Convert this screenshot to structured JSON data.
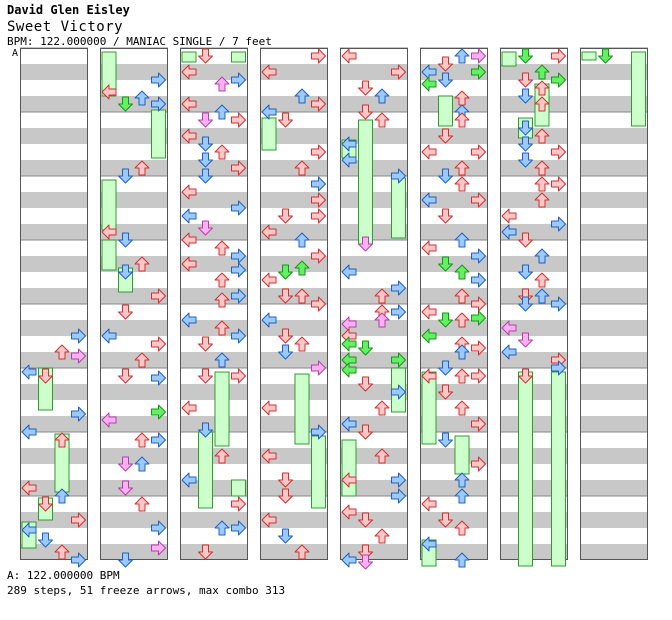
{
  "header": {
    "artist": "David Glen Eisley",
    "title": "Sweet Victory",
    "meta": "BPM: 122.000000 / MANIAC SINGLE / 7 feet",
    "bpm_marker": "A"
  },
  "footer": {
    "bpm_line": "A: 122.000000 BPM",
    "stats_line": "289 steps, 51 freeze arrows, max combo 313"
  },
  "colors": {
    "stripe": "#c8c8c8",
    "panel_border": "#555555",
    "arrow_red_fill": "#ffc8c8",
    "arrow_red_stroke": "#d03030",
    "arrow_blue_fill": "#9ccaff",
    "arrow_blue_stroke": "#2060c0",
    "arrow_green_fill": "#66ee66",
    "arrow_green_stroke": "#119911",
    "arrow_pink_fill": "#ffb0f0",
    "arrow_pink_stroke": "#b040b0",
    "freeze_fill": "#ccffcc",
    "freeze_stroke": "#339933"
  }
}
